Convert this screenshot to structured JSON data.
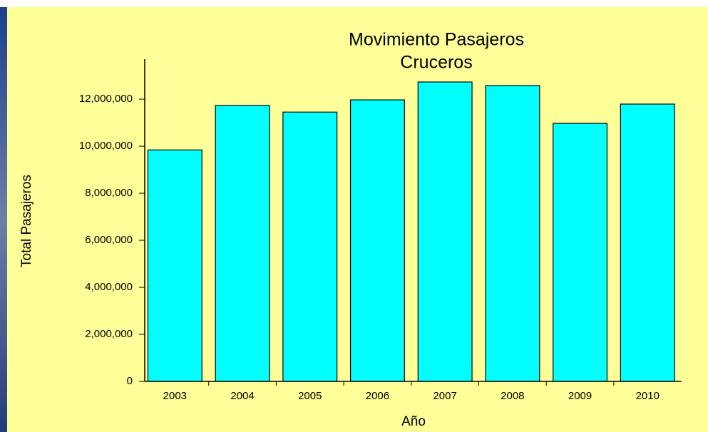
{
  "chart_data": {
    "type": "bar",
    "title": [
      "Movimiento Pasajeros",
      "Cruceros"
    ],
    "x_label": "Año",
    "y_label": "Total Pasajeros",
    "categories": [
      "2003",
      "2004",
      "2005",
      "2006",
      "2007",
      "2008",
      "2009",
      "2010"
    ],
    "values": [
      9840000,
      11730000,
      11450000,
      11970000,
      12730000,
      12580000,
      10970000,
      11790000
    ],
    "color": "#00ffff",
    "ylim": [
      0,
      13700000
    ],
    "yticks": [
      0,
      {
        "value": 2000000,
        "label": "2,000,000"
      },
      {
        "value": 4000000,
        "label": "4,000,000"
      },
      {
        "value": 6000000,
        "label": "6,000,000"
      },
      {
        "value": 8000000,
        "label": "8,000,000"
      },
      {
        "value": 10000000,
        "label": "10,000,000"
      },
      {
        "value": 12000000,
        "label": "12,000,000"
      }
    ],
    "grid": false
  }
}
